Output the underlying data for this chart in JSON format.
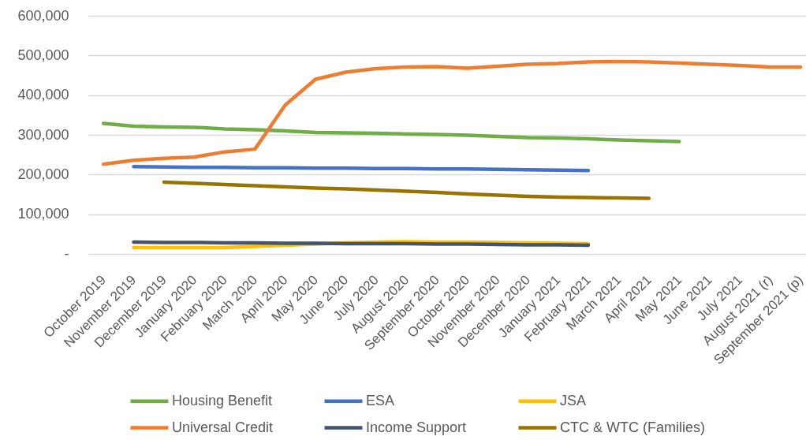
{
  "chart_data": {
    "type": "line",
    "categories": [
      "October 2019",
      "November 2019",
      "December 2019",
      "January 2020",
      "February 2020",
      "March 2020",
      "April 2020",
      "May 2020",
      "June 2020",
      "July 2020",
      "August 2020",
      "September 2020",
      "October 2020",
      "November 2020",
      "December 2020",
      "January 2021",
      "February 2021",
      "March 2021",
      "April 2021",
      "May 2021",
      "June 2021",
      "July 2021",
      "August 2021 (r)",
      "September 2021 (p)"
    ],
    "series": [
      {
        "name": "Housing Benefit",
        "color": "#70ad47",
        "values": [
          329000,
          322000,
          320000,
          319000,
          315000,
          313000,
          310000,
          306000,
          305000,
          304000,
          302000,
          301000,
          299000,
          296000,
          293000,
          292000,
          290000,
          287000,
          285000,
          283000,
          null,
          null,
          null,
          null
        ]
      },
      {
        "name": "ESA",
        "color": "#4472c4",
        "values": [
          null,
          220000,
          219000,
          218000,
          218000,
          217000,
          217000,
          216000,
          216000,
          215000,
          215000,
          214000,
          214000,
          213000,
          212000,
          211000,
          210000,
          null,
          null,
          null,
          null,
          null,
          null,
          null
        ]
      },
      {
        "name": "JSA",
        "color": "#ffc000",
        "values": [
          null,
          16000,
          16000,
          16000,
          16000,
          19000,
          22000,
          25000,
          28000,
          30000,
          31000,
          30000,
          30000,
          29000,
          28000,
          27000,
          26000,
          null,
          null,
          null,
          null,
          null,
          null,
          null
        ]
      },
      {
        "name": "Universal Credit",
        "color": "#ed7d31",
        "values": [
          226000,
          236000,
          241000,
          244000,
          257000,
          264000,
          375000,
          440000,
          458000,
          467000,
          471000,
          472000,
          468000,
          473000,
          478000,
          480000,
          484000,
          485000,
          484000,
          481000,
          478000,
          475000,
          471000,
          471000
        ]
      },
      {
        "name": "Income Support",
        "color": "#44546a",
        "values": [
          null,
          30000,
          29000,
          29000,
          28000,
          28000,
          27000,
          27000,
          26000,
          26000,
          26000,
          25000,
          25000,
          24000,
          23000,
          23000,
          22000,
          null,
          null,
          null,
          null,
          null,
          null,
          null
        ]
      },
      {
        "name": "CTC & WTC (Families)",
        "color": "#997300",
        "values": [
          null,
          null,
          181000,
          178000,
          175000,
          172000,
          169000,
          166000,
          164000,
          161000,
          158000,
          155000,
          151000,
          148000,
          145000,
          143000,
          142000,
          141000,
          140000,
          null,
          null,
          null,
          null,
          null
        ]
      }
    ],
    "ylim": [
      0,
      600000
    ],
    "yticks": [
      {
        "value": 0,
        "label": "-"
      },
      {
        "value": 100000,
        "label": "100,000"
      },
      {
        "value": 200000,
        "label": "200,000"
      },
      {
        "value": 300000,
        "label": "300,000"
      },
      {
        "value": 400000,
        "label": "400,000"
      },
      {
        "value": 500000,
        "label": "500,000"
      },
      {
        "value": 600000,
        "label": "600,000"
      }
    ],
    "grid": "y",
    "legend": "bottom",
    "line_style": "solid"
  }
}
